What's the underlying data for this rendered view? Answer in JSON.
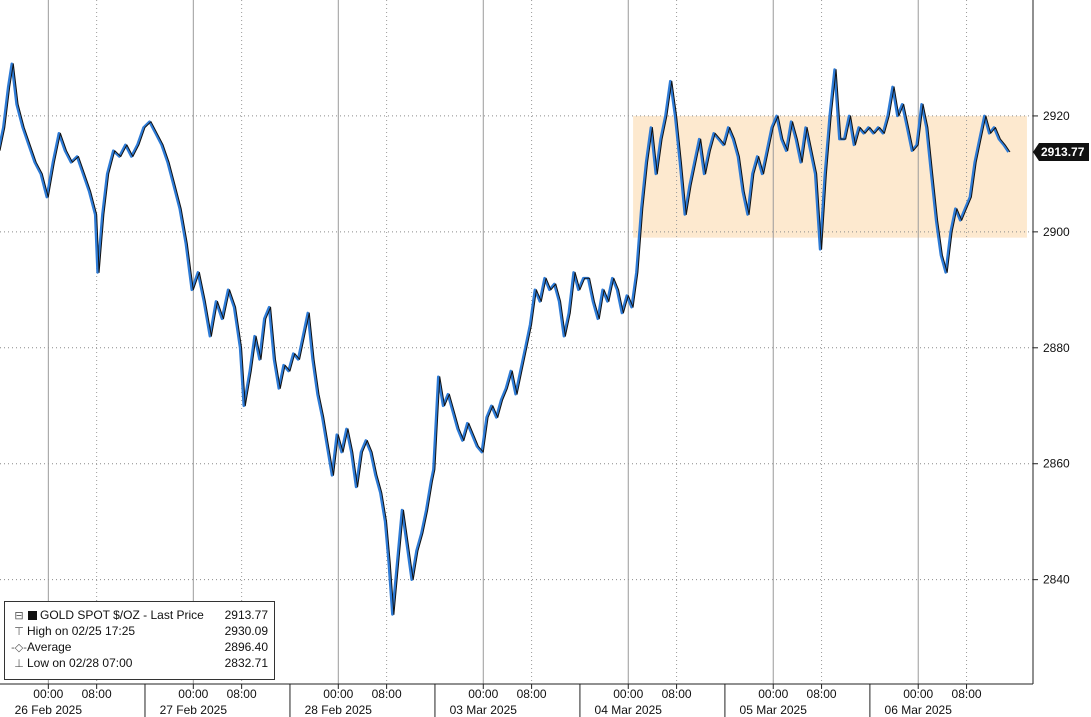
{
  "chart_data": {
    "type": "line",
    "series": [
      {
        "name": "GOLD SPOT $/OZ - Last Price",
        "color": "#111111",
        "shadow_color": "#2e7bd6",
        "points": [
          [
            0.0,
            2914
          ],
          [
            0.4,
            2918
          ],
          [
            0.8,
            2925
          ],
          [
            1.1,
            2929
          ],
          [
            1.5,
            2922
          ],
          [
            2.0,
            2918
          ],
          [
            2.5,
            2915
          ],
          [
            3.0,
            2912
          ],
          [
            3.5,
            2910
          ],
          [
            4.0,
            2906
          ],
          [
            4.5,
            2912
          ],
          [
            5.0,
            2917
          ],
          [
            5.5,
            2914
          ],
          [
            6.0,
            2912
          ],
          [
            6.5,
            2913
          ],
          [
            7.0,
            2910
          ],
          [
            7.5,
            2907
          ],
          [
            8.0,
            2903
          ],
          [
            8.2,
            2893
          ],
          [
            8.6,
            2903
          ],
          [
            9.0,
            2910
          ],
          [
            9.5,
            2914
          ],
          [
            10.0,
            2913
          ],
          [
            10.5,
            2915
          ],
          [
            11.0,
            2913
          ],
          [
            11.5,
            2915
          ],
          [
            12.0,
            2918
          ],
          [
            12.5,
            2919
          ],
          [
            13.0,
            2917
          ],
          [
            13.5,
            2915
          ],
          [
            14.0,
            2912
          ],
          [
            14.5,
            2908
          ],
          [
            15.0,
            2904
          ],
          [
            15.5,
            2898
          ],
          [
            16.0,
            2890
          ],
          [
            16.5,
            2893
          ],
          [
            17.0,
            2888
          ],
          [
            17.5,
            2882
          ],
          [
            18.0,
            2888
          ],
          [
            18.5,
            2885
          ],
          [
            19.0,
            2890
          ],
          [
            19.5,
            2887
          ],
          [
            20.0,
            2880
          ],
          [
            20.3,
            2870
          ],
          [
            20.8,
            2876
          ],
          [
            21.2,
            2882
          ],
          [
            21.6,
            2878
          ],
          [
            22.0,
            2885
          ],
          [
            22.4,
            2887
          ],
          [
            22.8,
            2878
          ],
          [
            23.2,
            2873
          ],
          [
            23.6,
            2877
          ],
          [
            24.0,
            2876
          ],
          [
            24.4,
            2879
          ],
          [
            24.8,
            2878
          ],
          [
            25.2,
            2882
          ],
          [
            25.6,
            2886
          ],
          [
            26.0,
            2878
          ],
          [
            26.4,
            2872
          ],
          [
            26.8,
            2868
          ],
          [
            27.2,
            2863
          ],
          [
            27.6,
            2858
          ],
          [
            28.0,
            2865
          ],
          [
            28.4,
            2862
          ],
          [
            28.8,
            2866
          ],
          [
            29.2,
            2862
          ],
          [
            29.6,
            2856
          ],
          [
            30.0,
            2862
          ],
          [
            30.4,
            2864
          ],
          [
            30.8,
            2862
          ],
          [
            31.2,
            2858
          ],
          [
            31.6,
            2855
          ],
          [
            32.0,
            2850
          ],
          [
            32.3,
            2843
          ],
          [
            32.6,
            2834
          ],
          [
            33.0,
            2843
          ],
          [
            33.4,
            2852
          ],
          [
            33.8,
            2846
          ],
          [
            34.2,
            2840
          ],
          [
            34.6,
            2845
          ],
          [
            35.0,
            2848
          ],
          [
            35.4,
            2852
          ],
          [
            35.8,
            2857
          ],
          [
            36.0,
            2859
          ],
          [
            36.4,
            2875
          ],
          [
            36.8,
            2870
          ],
          [
            37.2,
            2872
          ],
          [
            37.6,
            2869
          ],
          [
            38.0,
            2866
          ],
          [
            38.4,
            2864
          ],
          [
            38.8,
            2867
          ],
          [
            39.2,
            2865
          ],
          [
            39.6,
            2863
          ],
          [
            40.0,
            2862
          ],
          [
            40.4,
            2868
          ],
          [
            40.8,
            2870
          ],
          [
            41.2,
            2868
          ],
          [
            41.6,
            2871
          ],
          [
            42.0,
            2873
          ],
          [
            42.4,
            2876
          ],
          [
            42.8,
            2872
          ],
          [
            43.2,
            2876
          ],
          [
            43.6,
            2880
          ],
          [
            44.0,
            2884
          ],
          [
            44.4,
            2890
          ],
          [
            44.8,
            2888
          ],
          [
            45.2,
            2892
          ],
          [
            45.6,
            2890
          ],
          [
            46.0,
            2891
          ],
          [
            46.4,
            2888
          ],
          [
            46.8,
            2882
          ],
          [
            47.2,
            2886
          ],
          [
            47.6,
            2893
          ],
          [
            48.0,
            2890
          ],
          [
            48.4,
            2892
          ],
          [
            48.8,
            2892
          ],
          [
            49.2,
            2888
          ],
          [
            49.6,
            2885
          ],
          [
            50.0,
            2890
          ],
          [
            50.4,
            2888
          ],
          [
            50.8,
            2892
          ],
          [
            51.2,
            2890
          ],
          [
            51.6,
            2886
          ],
          [
            52.0,
            2889
          ],
          [
            52.4,
            2887
          ],
          [
            52.8,
            2893
          ],
          [
            53.2,
            2904
          ],
          [
            53.6,
            2912
          ],
          [
            54.0,
            2918
          ],
          [
            54.4,
            2910
          ],
          [
            54.8,
            2916
          ],
          [
            55.2,
            2920
          ],
          [
            55.6,
            2926
          ],
          [
            56.0,
            2920
          ],
          [
            56.4,
            2912
          ],
          [
            56.8,
            2903
          ],
          [
            57.2,
            2908
          ],
          [
            57.6,
            2912
          ],
          [
            58.0,
            2916
          ],
          [
            58.4,
            2910
          ],
          [
            58.8,
            2914
          ],
          [
            59.2,
            2917
          ],
          [
            59.6,
            2916
          ],
          [
            60.0,
            2915
          ],
          [
            60.4,
            2918
          ],
          [
            60.8,
            2916
          ],
          [
            61.2,
            2913
          ],
          [
            61.6,
            2907
          ],
          [
            62.0,
            2903
          ],
          [
            62.4,
            2910
          ],
          [
            62.8,
            2913
          ],
          [
            63.2,
            2910
          ],
          [
            63.6,
            2914
          ],
          [
            64.0,
            2918
          ],
          [
            64.4,
            2920
          ],
          [
            64.8,
            2916
          ],
          [
            65.2,
            2914
          ],
          [
            65.6,
            2919
          ],
          [
            66.0,
            2916
          ],
          [
            66.4,
            2912
          ],
          [
            66.8,
            2918
          ],
          [
            67.2,
            2914
          ],
          [
            67.6,
            2910
          ],
          [
            68.0,
            2897
          ],
          [
            68.4,
            2910
          ],
          [
            68.8,
            2920
          ],
          [
            69.2,
            2928
          ],
          [
            69.6,
            2916
          ],
          [
            70.0,
            2916
          ],
          [
            70.4,
            2920
          ],
          [
            70.8,
            2915
          ],
          [
            71.2,
            2918
          ],
          [
            71.6,
            2917
          ],
          [
            72.0,
            2918
          ],
          [
            72.4,
            2917
          ],
          [
            72.8,
            2918
          ],
          [
            73.2,
            2917
          ],
          [
            73.6,
            2920
          ],
          [
            74.0,
            2925
          ],
          [
            74.4,
            2920
          ],
          [
            74.8,
            2922
          ],
          [
            75.2,
            2918
          ],
          [
            75.6,
            2914
          ],
          [
            76.0,
            2915
          ],
          [
            76.4,
            2922
          ],
          [
            76.8,
            2918
          ],
          [
            77.2,
            2910
          ],
          [
            77.6,
            2902
          ],
          [
            78.0,
            2896
          ],
          [
            78.4,
            2893
          ],
          [
            78.8,
            2900
          ],
          [
            79.2,
            2904
          ],
          [
            79.6,
            2902
          ],
          [
            80.0,
            2904
          ],
          [
            80.4,
            2906
          ],
          [
            80.8,
            2912
          ],
          [
            81.2,
            2916
          ],
          [
            81.6,
            2920
          ],
          [
            82.0,
            2917
          ],
          [
            82.4,
            2918
          ],
          [
            82.8,
            2916
          ],
          [
            83.2,
            2915
          ],
          [
            83.6,
            2913.77
          ]
        ]
      }
    ],
    "x_domain": [
      0,
      85.5
    ],
    "x_ticks": [
      {
        "x": 4,
        "time": "00:00",
        "date": "26 Feb 2025"
      },
      {
        "x": 8,
        "time": "08:00"
      },
      {
        "x": 16,
        "time": "00:00",
        "date": "27 Feb 2025"
      },
      {
        "x": 20,
        "time": "08:00"
      },
      {
        "x": 28,
        "time": "00:00",
        "date": "28 Feb 2025"
      },
      {
        "x": 32,
        "time": "08:00"
      },
      {
        "x": 40,
        "time": "00:00",
        "date": "03 Mar 2025"
      },
      {
        "x": 44,
        "time": "08:00"
      },
      {
        "x": 52,
        "time": "00:00",
        "date": "04 Mar 2025"
      },
      {
        "x": 56,
        "time": "08:00"
      },
      {
        "x": 64,
        "time": "00:00",
        "date": "05 Mar 2025"
      },
      {
        "x": 68,
        "time": "08:00"
      },
      {
        "x": 76,
        "time": "00:00",
        "date": "06 Mar 2025"
      },
      {
        "x": 80,
        "time": "08:00"
      }
    ],
    "y_ticks": [
      2840,
      2860,
      2880,
      2900,
      2920
    ],
    "ylim": [
      2822,
      2940
    ],
    "range_band": {
      "from": 2899,
      "to": 2920,
      "x_from": 52.4,
      "x_to": 85.0,
      "color": "#fde9cf"
    },
    "last_price": 2913.77,
    "last_price_label": "2913.77",
    "grid": true,
    "legend": {
      "placement": "bottom-left",
      "title": "GOLD SPOT $/OZ - Last Price",
      "title_value": "2913.77",
      "rows": [
        {
          "label": "High on 02/25 17:25",
          "value": "2930.09"
        },
        {
          "label": "Average",
          "value": "2896.40"
        },
        {
          "label": "Low on 02/28 07:00",
          "value": "2832.71"
        }
      ]
    }
  }
}
